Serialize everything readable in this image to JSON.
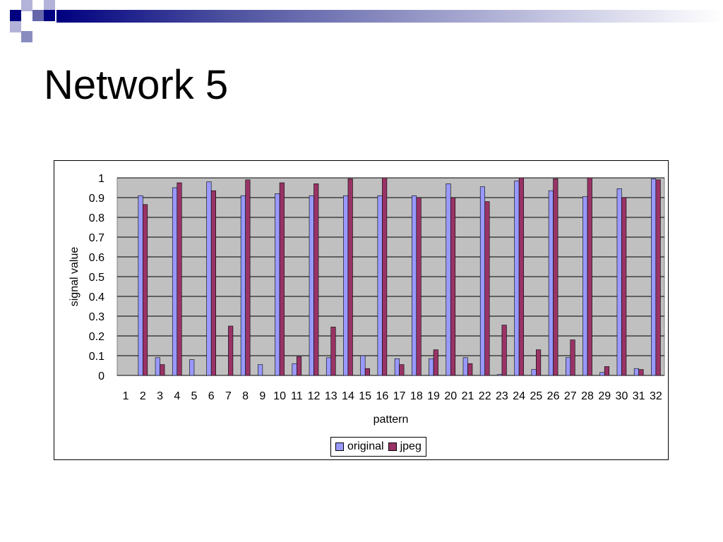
{
  "slide": {
    "title": "Network 5"
  },
  "colors": {
    "plot_background": "#c0c0c0",
    "original": "#9999ff",
    "jpeg": "#993366",
    "header_dark": "#000080",
    "header_mid": "#6666aa",
    "header_light": "#b3b3d9"
  },
  "chart_data": {
    "type": "bar",
    "title": "",
    "xlabel": "pattern",
    "ylabel": "signal value",
    "ylim": [
      0,
      1
    ],
    "yticks": [
      "0",
      "0.1",
      "0.2",
      "0.3",
      "0.4",
      "0.5",
      "0.6",
      "0.7",
      "0.8",
      "0.9",
      "1"
    ],
    "grid": true,
    "legend_position": "bottom",
    "categories": [
      "1",
      "2",
      "3",
      "4",
      "5",
      "6",
      "7",
      "8",
      "9",
      "10",
      "11",
      "12",
      "13",
      "14",
      "15",
      "16",
      "17",
      "18",
      "19",
      "20",
      "21",
      "22",
      "23",
      "24",
      "25",
      "26",
      "27",
      "28",
      "29",
      "30",
      "31",
      "32"
    ],
    "series": [
      {
        "name": "original",
        "color": "#9999ff",
        "values": [
          0,
          0.91,
          0.09,
          0.95,
          0.08,
          0.98,
          0,
          0.91,
          0.055,
          0.92,
          0.06,
          0.91,
          0.09,
          0.91,
          0.1,
          0.91,
          0.085,
          0.91,
          0.085,
          0.97,
          0.09,
          0.955,
          0.005,
          0.985,
          0.03,
          0.935,
          0.09,
          0.905,
          0.015,
          0.945,
          0.035,
          0.995
        ]
      },
      {
        "name": "jpeg",
        "color": "#993366",
        "values": [
          0,
          0.865,
          0.055,
          0.975,
          0,
          0.935,
          0.25,
          0.99,
          0,
          0.975,
          0.095,
          0.97,
          0.245,
          0.995,
          0.035,
          1.0,
          0.055,
          0.9,
          0.13,
          0.9,
          0.06,
          0.88,
          0.255,
          1.0,
          0.13,
          0.995,
          0.18,
          1.0,
          0.045,
          0.9,
          0.03,
          0.99
        ]
      }
    ]
  }
}
